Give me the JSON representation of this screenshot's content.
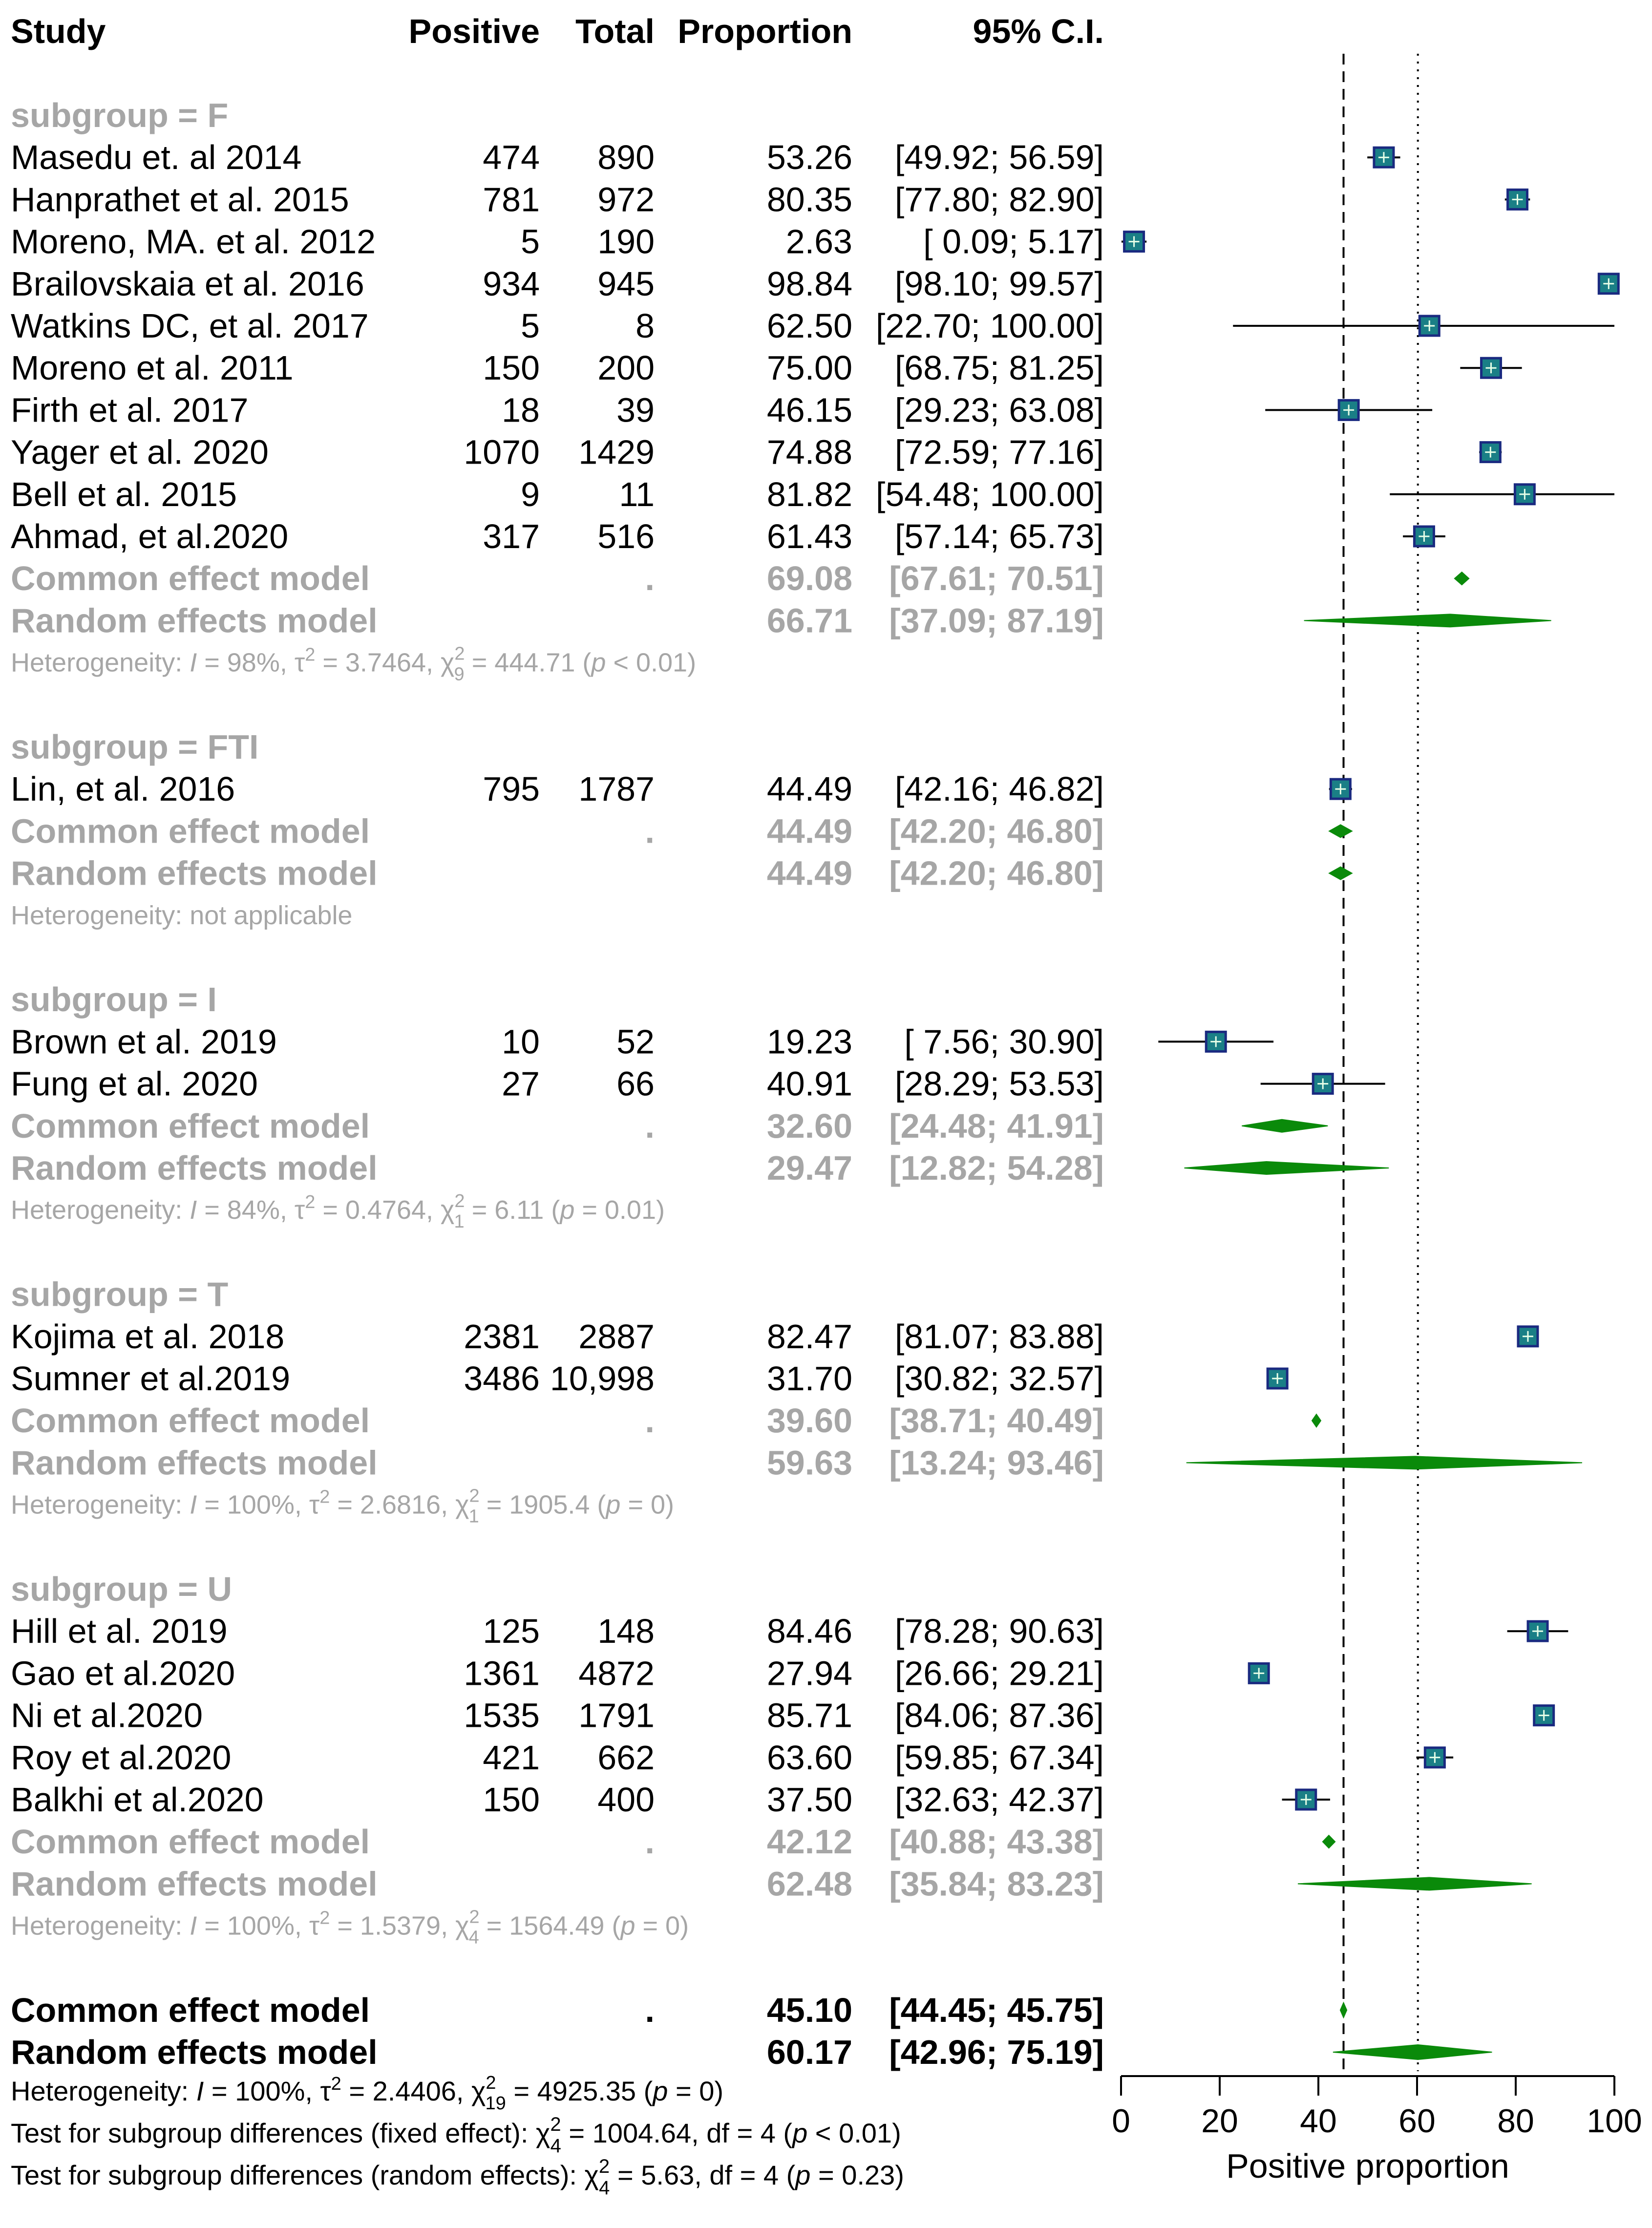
{
  "chart_data": {
    "type": "forest",
    "xlabel": "Positive proportion",
    "xlim": [
      0,
      100
    ],
    "ticks": [
      "0",
      "20",
      "40",
      "60",
      "80",
      "100"
    ],
    "reference_lines": {
      "common_effect": 45.1,
      "random_effects": 60.17
    },
    "headers": {
      "study": "Study",
      "positive": "Positive",
      "total": "Total",
      "proportion": "Proportion",
      "ci": "95% C.I."
    },
    "groups": [
      {
        "label": "subgroup = F",
        "studies": [
          {
            "name": "Masedu et. al 2014",
            "positive": "474",
            "total": "890",
            "prop_text": "53.26",
            "ci_text": "[49.92;  56.59]",
            "est": 53.26,
            "lo": 49.92,
            "hi": 56.59
          },
          {
            "name": "Hanprathet et al. 2015",
            "positive": "781",
            "total": "972",
            "prop_text": "80.35",
            "ci_text": "[77.80;  82.90]",
            "est": 80.35,
            "lo": 77.8,
            "hi": 82.9
          },
          {
            "name": "Moreno, MA. et al. 2012",
            "positive": "5",
            "total": "190",
            "prop_text": "2.63",
            "ci_text": "[ 0.09;   5.17]",
            "est": 2.63,
            "lo": 0.09,
            "hi": 5.17
          },
          {
            "name": "Brailovskaia  et al. 2016",
            "positive": "934",
            "total": "945",
            "prop_text": "98.84",
            "ci_text": "[98.10;  99.57]",
            "est": 98.84,
            "lo": 98.1,
            "hi": 99.57
          },
          {
            "name": "Watkins DC, et al. 2017",
            "positive": "5",
            "total": "8",
            "prop_text": "62.50",
            "ci_text": "[22.70; 100.00]",
            "est": 62.5,
            "lo": 22.7,
            "hi": 100.0
          },
          {
            "name": "Moreno et al. 2011",
            "positive": "150",
            "total": "200",
            "prop_text": "75.00",
            "ci_text": "[68.75;  81.25]",
            "est": 75.0,
            "lo": 68.75,
            "hi": 81.25
          },
          {
            "name": "Firth et al. 2017",
            "positive": "18",
            "total": "39",
            "prop_text": "46.15",
            "ci_text": "[29.23;  63.08]",
            "est": 46.15,
            "lo": 29.23,
            "hi": 63.08
          },
          {
            "name": "Yager et al. 2020",
            "positive": "1070",
            "total": "1429",
            "prop_text": "74.88",
            "ci_text": "[72.59;  77.16]",
            "est": 74.88,
            "lo": 72.59,
            "hi": 77.16
          },
          {
            "name": "Bell et al. 2015",
            "positive": "9",
            "total": "11",
            "prop_text": "81.82",
            "ci_text": "[54.48; 100.00]",
            "est": 81.82,
            "lo": 54.48,
            "hi": 100.0
          },
          {
            "name": "Ahmad, et al.2020",
            "positive": "317",
            "total": "516",
            "prop_text": "61.43",
            "ci_text": "[57.14;  65.73]",
            "est": 61.43,
            "lo": 57.14,
            "hi": 65.73
          }
        ],
        "common": {
          "name": "Common effect model",
          "total": ".",
          "prop_text": "69.08",
          "ci_text": "[67.61;  70.51]",
          "est": 69.08,
          "lo": 67.61,
          "hi": 70.51
        },
        "random": {
          "name": "Random effects model",
          "prop_text": "66.71",
          "ci_text": "[37.09;  87.19]",
          "est": 66.71,
          "lo": 37.09,
          "hi": 87.19
        },
        "heterogeneity": {
          "label": "Heterogeneity: ",
          "i2": "I",
          "i2_eq": " = 98%, τ",
          "tau_sq": "2",
          "tau_eq": " = 3.7464, χ",
          "chi_sup": "2",
          "chi_sub": "9",
          "chi_eq": " = 444.71 (",
          "p": "p",
          "p_val": " < 0.01)"
        }
      },
      {
        "label": "subgroup = FTI",
        "studies": [
          {
            "name": "Lin, et al. 2016",
            "positive": "795",
            "total": "1787",
            "prop_text": "44.49",
            "ci_text": "[42.16;  46.82]",
            "est": 44.49,
            "lo": 42.16,
            "hi": 46.82
          }
        ],
        "common": {
          "name": "Common effect model",
          "total": ".",
          "prop_text": "44.49",
          "ci_text": "[42.20;  46.80]",
          "est": 44.49,
          "lo": 42.2,
          "hi": 46.8
        },
        "random": {
          "name": "Random effects model",
          "prop_text": "44.49",
          "ci_text": "[42.20;  46.80]",
          "est": 44.49,
          "lo": 42.2,
          "hi": 46.8
        },
        "heterogeneity_text": "Heterogeneity: not applicable"
      },
      {
        "label": "subgroup = I",
        "studies": [
          {
            "name": "Brown et al. 2019",
            "positive": "10",
            "total": "52",
            "prop_text": "19.23",
            "ci_text": "[ 7.56;  30.90]",
            "est": 19.23,
            "lo": 7.56,
            "hi": 30.9
          },
          {
            "name": "Fung et al. 2020",
            "positive": "27",
            "total": "66",
            "prop_text": "40.91",
            "ci_text": "[28.29;  53.53]",
            "est": 40.91,
            "lo": 28.29,
            "hi": 53.53
          }
        ],
        "common": {
          "name": "Common effect model",
          "total": ".",
          "prop_text": "32.60",
          "ci_text": "[24.48;  41.91]",
          "est": 32.6,
          "lo": 24.48,
          "hi": 41.91
        },
        "random": {
          "name": "Random effects model",
          "prop_text": "29.47",
          "ci_text": "[12.82;  54.28]",
          "est": 29.47,
          "lo": 12.82,
          "hi": 54.28
        },
        "heterogeneity": {
          "label": "Heterogeneity: ",
          "i2": "I",
          "i2_eq": " = 84%, τ",
          "tau_sq": "2",
          "tau_eq": " = 0.4764, χ",
          "chi_sup": "2",
          "chi_sub": "1",
          "chi_eq": " = 6.11 (",
          "p": "p",
          "p_val": " = 0.01)"
        }
      },
      {
        "label": "subgroup = T",
        "studies": [
          {
            "name": "Kojima et al. 2018",
            "positive": "2381",
            "total": "2887",
            "prop_text": "82.47",
            "ci_text": "[81.07;  83.88]",
            "est": 82.47,
            "lo": 81.07,
            "hi": 83.88
          },
          {
            "name": "Sumner et al.2019",
            "positive": "3486",
            "total": "10,998",
            "prop_text": "31.70",
            "ci_text": "[30.82;  32.57]",
            "est": 31.7,
            "lo": 30.82,
            "hi": 32.57
          }
        ],
        "common": {
          "name": "Common effect model",
          "total": ".",
          "prop_text": "39.60",
          "ci_text": "[38.71;  40.49]",
          "est": 39.6,
          "lo": 38.71,
          "hi": 40.49
        },
        "random": {
          "name": "Random effects model",
          "prop_text": "59.63",
          "ci_text": "[13.24;  93.46]",
          "est": 59.63,
          "lo": 13.24,
          "hi": 93.46
        },
        "heterogeneity": {
          "label": "Heterogeneity: ",
          "i2": "I",
          "i2_eq": " = 100%, τ",
          "tau_sq": "2",
          "tau_eq": " = 2.6816, χ",
          "chi_sup": "2",
          "chi_sub": "1",
          "chi_eq": " = 1905.4 (",
          "p": "p",
          "p_val": " = 0)"
        }
      },
      {
        "label": "subgroup = U",
        "studies": [
          {
            "name": "Hill et al. 2019",
            "positive": "125",
            "total": "148",
            "prop_text": "84.46",
            "ci_text": "[78.28;  90.63]",
            "est": 84.46,
            "lo": 78.28,
            "hi": 90.63
          },
          {
            "name": "Gao et al.2020",
            "positive": "1361",
            "total": "4872",
            "prop_text": "27.94",
            "ci_text": "[26.66;  29.21]",
            "est": 27.94,
            "lo": 26.66,
            "hi": 29.21
          },
          {
            "name": "Ni et al.2020",
            "positive": "1535",
            "total": "1791",
            "prop_text": "85.71",
            "ci_text": "[84.06;  87.36]",
            "est": 85.71,
            "lo": 84.06,
            "hi": 87.36
          },
          {
            "name": "Roy et al.2020",
            "positive": "421",
            "total": "662",
            "prop_text": "63.60",
            "ci_text": "[59.85;  67.34]",
            "est": 63.6,
            "lo": 59.85,
            "hi": 67.34
          },
          {
            "name": "Balkhi et al.2020",
            "positive": "150",
            "total": "400",
            "prop_text": "37.50",
            "ci_text": "[32.63;  42.37]",
            "est": 37.5,
            "lo": 32.63,
            "hi": 42.37
          }
        ],
        "common": {
          "name": "Common effect model",
          "total": ".",
          "prop_text": "42.12",
          "ci_text": "[40.88;  43.38]",
          "est": 42.12,
          "lo": 40.88,
          "hi": 43.38
        },
        "random": {
          "name": "Random effects model",
          "prop_text": "62.48",
          "ci_text": "[35.84;  83.23]",
          "est": 62.48,
          "lo": 35.84,
          "hi": 83.23
        },
        "heterogeneity": {
          "label": "Heterogeneity: ",
          "i2": "I",
          "i2_eq": " = 100%, τ",
          "tau_sq": "2",
          "tau_eq": " = 1.5379, χ",
          "chi_sup": "2",
          "chi_sub": "4",
          "chi_eq": " = 1564.49 (",
          "p": "p",
          "p_val": " = 0)"
        }
      }
    ],
    "overall": {
      "common": {
        "name": "Common effect model",
        "total": ".",
        "prop_text": "45.10",
        "ci_text": "[44.45;  45.75]",
        "est": 45.1,
        "lo": 44.45,
        "hi": 45.75
      },
      "random": {
        "name": "Random effects model",
        "prop_text": "60.17",
        "ci_text": "[42.96;  75.19]",
        "est": 60.17,
        "lo": 42.96,
        "hi": 75.19
      },
      "heterogeneity": {
        "label": "Heterogeneity: ",
        "i2": "I",
        "i2_eq": " = 100%, τ",
        "tau_sq": "2",
        "tau_eq": " = 2.4406, χ",
        "chi_sup": "2",
        "chi_sub": "19",
        "chi_eq": " = 4925.35 (",
        "p": "p",
        "p_val": " = 0)"
      },
      "test_fixed": {
        "label": "Test for subgroup differences (fixed effect): χ",
        "chi_sup": "2",
        "chi_sub": "4",
        "rest": " = 1004.64, df = 4 (",
        "p": "p",
        "p_val": " < 0.01)"
      },
      "test_random": {
        "label": "Test for subgroup differences (random effects): χ",
        "chi_sup": "2",
        "chi_sub": "4",
        "rest": " = 5.63, df = 4 (",
        "p": "p",
        "p_val": " = 0.23)"
      }
    },
    "colors": {
      "square_fill": "#1a7f86",
      "square_stroke": "#1a2a80",
      "diamond": "#0a8a0a",
      "grey_text": "#a6a6a6",
      "ci_line": "#000000"
    }
  }
}
